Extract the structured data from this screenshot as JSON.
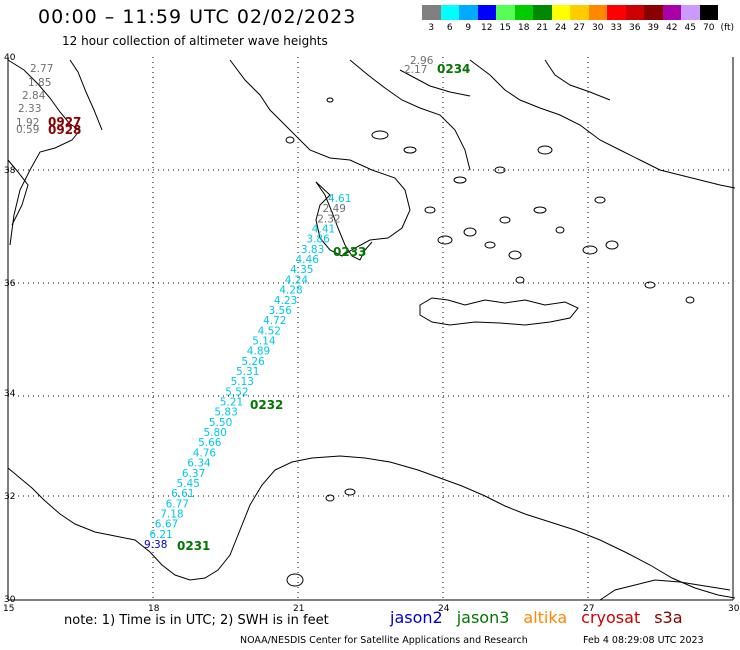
{
  "header": {
    "title": "00:00 – 11:59 UTC 02/02/2023",
    "subtitle": "12 hour collection of altimeter wave heights"
  },
  "color_scale": {
    "unit": "(ft)",
    "bins": [
      {
        "label": "3",
        "color": "#808080"
      },
      {
        "label": "6",
        "color": "#00ffff"
      },
      {
        "label": "9",
        "color": "#00aaff"
      },
      {
        "label": "12",
        "color": "#0000ff"
      },
      {
        "label": "15",
        "color": "#55ff55"
      },
      {
        "label": "18",
        "color": "#00cc00"
      },
      {
        "label": "21",
        "color": "#008800"
      },
      {
        "label": "24",
        "color": "#ffff00"
      },
      {
        "label": "27",
        "color": "#ffcc00"
      },
      {
        "label": "30",
        "color": "#ff8800"
      },
      {
        "label": "33",
        "color": "#ff0000"
      },
      {
        "label": "36",
        "color": "#cc0000"
      },
      {
        "label": "39",
        "color": "#880000"
      },
      {
        "label": "42",
        "color": "#aa00aa"
      },
      {
        "label": "45",
        "color": "#cc99ff"
      },
      {
        "label": "70",
        "color": "#000000"
      }
    ]
  },
  "axes": {
    "lat_labels": [
      "40",
      "38",
      "36",
      "34",
      "32",
      "30"
    ],
    "lon_labels": [
      "15",
      "18",
      "21",
      "24",
      "27",
      "30"
    ]
  },
  "track_colors": {
    "jason2": "#0000cc",
    "jason3": "#007700",
    "altika": "#ff8800",
    "cryosat": "#cc0000",
    "s3a": "#880000",
    "track_cyan": "#00c8e6",
    "track_grey": "#707070",
    "track_dark_red": "#880000"
  },
  "pass_times": {
    "main_track": [
      "0231",
      "0232",
      "0233"
    ],
    "north_track": "0234",
    "west_track": [
      "0927",
      "0928"
    ]
  },
  "wave_heights": {
    "main_track": [
      "9.38",
      "6.21",
      "6.67",
      "7.18",
      "6.77",
      "6.61",
      "5.45",
      "6.37",
      "6.34",
      "4.76",
      "5.66",
      "5.80",
      "5.50",
      "5.83",
      "5.21",
      "5.52",
      "5.13",
      "5.31",
      "5.26",
      "4.89",
      "5.14",
      "4.52",
      "4.72",
      "3.56",
      "4.23",
      "4.28",
      "4.24",
      "4.35",
      "4.46",
      "3.83",
      "3.86",
      "4.41",
      "2.32",
      "2.49",
      "4.61"
    ],
    "north_track": [
      "2.96",
      "2.17"
    ],
    "west_track": [
      "2.77",
      "1.85",
      "2.84",
      "2.33",
      "1.92",
      "0.59"
    ]
  },
  "footer": {
    "note": "note: 1) Time is in UTC; 2) SWH is in feet",
    "satellites": [
      "jason2",
      "jason3",
      "altika",
      "cryosat",
      "s3a"
    ],
    "credit": "NOAA/NESDIS Center for Satellite Applications and Research",
    "timestamp": "Feb  4 08:29:08 UTC 2023"
  }
}
